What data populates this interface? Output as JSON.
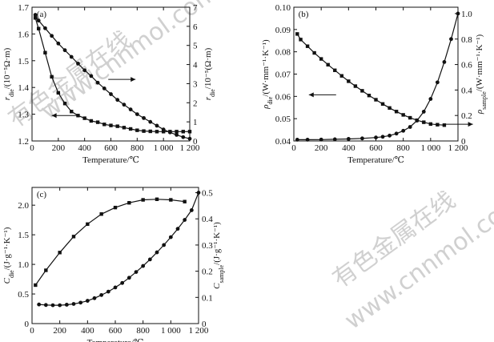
{
  "watermark": {
    "cn": "有色金属在线",
    "url": "www.cnnmol.com"
  },
  "chart_data": [
    {
      "panel_label": "(a)",
      "type": "line",
      "xlabel": "Temperature/℃",
      "xlim": [
        0,
        1200
      ],
      "xticks": [
        0,
        200,
        400,
        600,
        800,
        1000,
        1200
      ],
      "xtick_labels": [
        "0",
        "200",
        "400",
        "600",
        "800",
        "1 000",
        "1 200"
      ],
      "ylabel_left": "r_die/(10⁻⁵Ω·m)",
      "ylim_left": [
        1.2,
        1.7
      ],
      "yticks_left": [
        "1.2",
        "1.3",
        "1.4",
        "1.5",
        "1.6",
        "1.7"
      ],
      "ylabel_right": "r_die/10⁻⁵(Ω·m)",
      "ylim_right": [
        0,
        7
      ],
      "yticks_right": [
        "0",
        "1",
        "2",
        "3",
        "4",
        "5",
        "6",
        "7"
      ],
      "arrows": [
        {
          "points_to": "left",
          "at_x": 150,
          "at_y_left": 1.295
        },
        {
          "points_to": "right",
          "at_x": 580,
          "at_y_left": 1.43
        }
      ],
      "series": [
        {
          "axis": "left",
          "marker": "square",
          "x": [
            25,
            50,
            100,
            150,
            200,
            250,
            300,
            350,
            400,
            450,
            500,
            550,
            600,
            650,
            700,
            750,
            800,
            850,
            900,
            950,
            1000,
            1050,
            1100,
            1150,
            1200
          ],
          "values": [
            1.66,
            1.62,
            1.53,
            1.44,
            1.38,
            1.34,
            1.31,
            1.295,
            1.285,
            1.275,
            1.27,
            1.262,
            1.258,
            1.255,
            1.25,
            1.245,
            1.24,
            1.237,
            1.236,
            1.235,
            1.235,
            1.235,
            1.235,
            1.235,
            1.235
          ]
        },
        {
          "axis": "right",
          "marker": "circle",
          "x": [
            25,
            50,
            100,
            150,
            200,
            250,
            300,
            350,
            400,
            450,
            500,
            550,
            600,
            650,
            700,
            750,
            800,
            850,
            900,
            950,
            1000,
            1050,
            1100,
            1150,
            1200
          ],
          "values": [
            6.6,
            6.3,
            5.9,
            5.5,
            5.1,
            4.75,
            4.4,
            4.05,
            3.7,
            3.4,
            3.05,
            2.75,
            2.45,
            2.15,
            1.9,
            1.65,
            1.4,
            1.2,
            1.0,
            0.8,
            0.6,
            0.45,
            0.32,
            0.2,
            0.12
          ]
        }
      ]
    },
    {
      "panel_label": "(b)",
      "type": "line",
      "xlabel": "Temperature/℃",
      "xlim": [
        0,
        1200
      ],
      "xticks": [
        0,
        200,
        400,
        600,
        800,
        1000,
        1200
      ],
      "xtick_labels": [
        "0",
        "200",
        "400",
        "600",
        "800",
        "1 000",
        "1 200"
      ],
      "ylabel_left": "ρ_die/(W·mm⁻¹·K⁻¹)",
      "ylim_left": [
        0.04,
        0.1
      ],
      "yticks_left": [
        "0.04",
        "0.05",
        "0.06",
        "0.07",
        "0.08",
        "0.09",
        "0.10"
      ],
      "ylabel_right": "ρ_sample/(W·mm⁻¹·K⁻¹)",
      "ylim_right": [
        0,
        1.05
      ],
      "yticks_right": [
        "0",
        "0.2",
        "0.4",
        "0.6",
        "0.8",
        "1.0"
      ],
      "arrows": [
        {
          "points_to": "left",
          "at_x": 110,
          "at_y_left": 0.0607
        },
        {
          "points_to": "right",
          "at_x": 1110,
          "at_y_left": 0.0475
        }
      ],
      "series": [
        {
          "axis": "left",
          "marker": "square",
          "x": [
            25,
            50,
            100,
            150,
            200,
            250,
            300,
            350,
            400,
            450,
            500,
            550,
            600,
            650,
            700,
            750,
            800,
            850,
            900,
            950,
            1000,
            1050,
            1100
          ],
          "values": [
            0.088,
            0.0855,
            0.0825,
            0.0795,
            0.0768,
            0.0742,
            0.0717,
            0.0692,
            0.0668,
            0.0646,
            0.0625,
            0.0604,
            0.0585,
            0.0566,
            0.0548,
            0.0532,
            0.0517,
            0.0504,
            0.0493,
            0.0484,
            0.0476,
            0.0473,
            0.0471
          ]
        },
        {
          "axis": "right",
          "marker": "circle",
          "x": [
            25,
            100,
            200,
            300,
            400,
            500,
            600,
            650,
            700,
            750,
            800,
            850,
            900,
            950,
            1000,
            1050,
            1100,
            1150,
            1200
          ],
          "values": [
            0.01,
            0.01,
            0.011,
            0.013,
            0.016,
            0.02,
            0.027,
            0.033,
            0.042,
            0.058,
            0.08,
            0.11,
            0.16,
            0.23,
            0.33,
            0.46,
            0.62,
            0.8,
            1.0
          ]
        }
      ]
    },
    {
      "panel_label": "(c)",
      "type": "line",
      "xlabel": "Temperature/℃",
      "xlim": [
        0,
        1200
      ],
      "xticks": [
        0,
        200,
        400,
        600,
        800,
        1000,
        1200
      ],
      "xtick_labels": [
        "0",
        "200",
        "400",
        "600",
        "800",
        "1 000",
        "1 200"
      ],
      "ylabel_left": "C_die/(J·g⁻¹·K⁻¹)",
      "ylim_left": [
        0,
        2.3
      ],
      "yticks_left": [
        "0",
        "0.5",
        "1.0",
        "1.5",
        "2.0"
      ],
      "ylabel_right": "C_sample/(J·g⁻¹·K⁻¹)",
      "ylim_right": [
        0,
        0.52
      ],
      "yticks_right": [
        "0",
        "0.1",
        "0.2",
        "0.3",
        "0.4",
        "0.5"
      ],
      "series": [
        {
          "axis": "left",
          "marker": "square",
          "x": [
            25,
            100,
            200,
            300,
            400,
            500,
            600,
            700,
            800,
            900,
            1000,
            1100
          ],
          "values": [
            0.65,
            0.9,
            1.2,
            1.47,
            1.68,
            1.85,
            1.96,
            2.04,
            2.09,
            2.1,
            2.09,
            2.06
          ]
        },
        {
          "axis": "right",
          "marker": "circle",
          "x": [
            50,
            100,
            150,
            200,
            250,
            300,
            350,
            400,
            450,
            500,
            550,
            600,
            650,
            700,
            750,
            800,
            850,
            900,
            950,
            1000,
            1050,
            1100,
            1150,
            1200
          ],
          "values": [
            0.073,
            0.071,
            0.07,
            0.07,
            0.072,
            0.075,
            0.08,
            0.087,
            0.097,
            0.109,
            0.122,
            0.138,
            0.155,
            0.175,
            0.197,
            0.22,
            0.245,
            0.272,
            0.3,
            0.33,
            0.362,
            0.396,
            0.433,
            0.5
          ]
        }
      ]
    }
  ]
}
